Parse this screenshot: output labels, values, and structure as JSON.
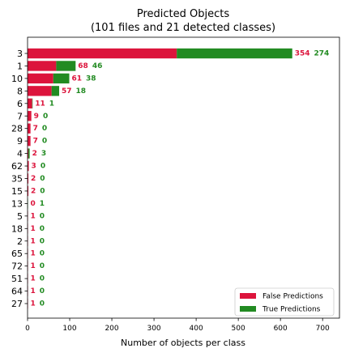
{
  "chart_data": {
    "type": "bar",
    "orientation": "horizontal",
    "stacked": true,
    "title": "Predicted Objects",
    "subtitle": "(101 files and 21 detected classes)",
    "xlabel": "Number of objects per class",
    "ylabel": "",
    "xlim": [
      0,
      740
    ],
    "xticks": [
      0,
      100,
      200,
      300,
      400,
      500,
      600,
      700
    ],
    "grid": false,
    "legend_position": "bottom-right",
    "categories": [
      "3",
      "1",
      "10",
      "8",
      "6",
      "7",
      "28",
      "9",
      "4",
      "62",
      "35",
      "15",
      "13",
      "5",
      "18",
      "2",
      "65",
      "72",
      "51",
      "64",
      "27"
    ],
    "series": [
      {
        "name": "False Predictions",
        "color": "#dc143c",
        "values": [
          354,
          68,
          61,
          57,
          11,
          9,
          7,
          7,
          2,
          3,
          2,
          2,
          0,
          1,
          1,
          1,
          1,
          1,
          1,
          1,
          1
        ]
      },
      {
        "name": "True Predictions",
        "color": "#228b22",
        "values": [
          274,
          46,
          38,
          18,
          1,
          0,
          0,
          0,
          3,
          0,
          0,
          0,
          1,
          0,
          0,
          0,
          0,
          0,
          0,
          0,
          0
        ]
      }
    ]
  }
}
